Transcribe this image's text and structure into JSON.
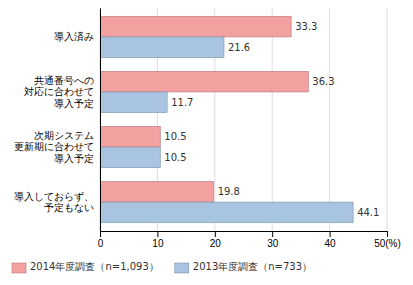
{
  "chart_data": {
    "type": "bar",
    "orientation": "horizontal",
    "categories": [
      "導入済み",
      "共通番号への\n対応に合わせて\n導入予定",
      "次期システム\n更新期に合わせて\n導入予定",
      "導入しておらず、\n予定もない"
    ],
    "series": [
      {
        "name": "2014年度調査（n=1,093）",
        "color": "#f2a0a0",
        "values": [
          33.3,
          36.3,
          10.5,
          19.8
        ]
      },
      {
        "name": "2013年度調査（n=733）",
        "color": "#a8c4e0",
        "values": [
          21.6,
          11.7,
          10.5,
          44.1
        ]
      }
    ],
    "xlim": [
      0,
      50
    ],
    "xticks": [
      0,
      10,
      20,
      30,
      40,
      {
        "value": 50,
        "label": "50(%)"
      }
    ],
    "grid": true,
    "data_labels": true,
    "legend": "bottom"
  }
}
